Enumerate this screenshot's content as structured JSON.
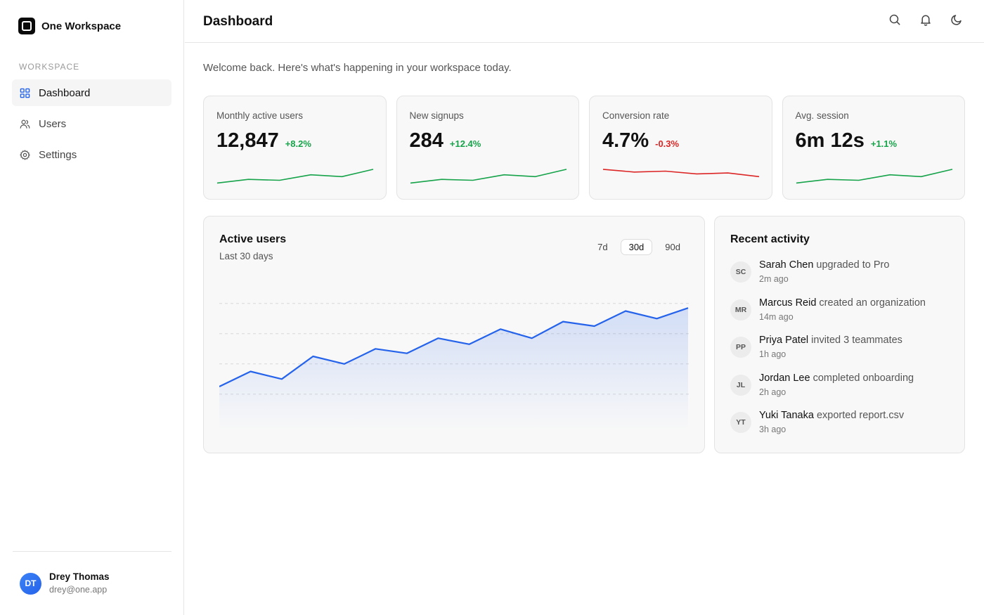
{
  "brand": {
    "name": "One Workspace"
  },
  "sidebar": {
    "section_label": "WORKSPACE",
    "items": [
      {
        "label": "Dashboard",
        "icon": "grid-icon",
        "active": true
      },
      {
        "label": "Users",
        "icon": "users-icon",
        "active": false
      },
      {
        "label": "Settings",
        "icon": "gear-icon",
        "active": false
      }
    ],
    "user": {
      "initials": "DT",
      "name": "Drey Thomas",
      "email": "drey@one.app"
    }
  },
  "header": {
    "title": "Dashboard",
    "icons": [
      "search-icon",
      "bell-icon",
      "moon-icon"
    ]
  },
  "welcome": "Welcome back. Here's what's happening in your workspace today.",
  "colors": {
    "accent": "#2563eb",
    "positive": "#16a34a",
    "negative": "#dc2626"
  },
  "stats": [
    {
      "label": "Monthly active users",
      "value": "12,847",
      "delta": "+8.2%",
      "trend": "up",
      "spark": [
        10,
        14,
        13,
        19,
        17,
        25
      ]
    },
    {
      "label": "New signups",
      "value": "284",
      "delta": "+12.4%",
      "trend": "up",
      "spark": [
        10,
        14,
        13,
        19,
        17,
        25
      ]
    },
    {
      "label": "Conversion rate",
      "value": "4.7%",
      "delta": "-0.3%",
      "trend": "down",
      "spark": [
        25,
        22,
        23,
        20,
        21,
        17
      ]
    },
    {
      "label": "Avg. session",
      "value": "6m 12s",
      "delta": "+1.1%",
      "trend": "up",
      "spark": [
        10,
        14,
        13,
        19,
        17,
        25
      ]
    }
  ],
  "active_users": {
    "title": "Active users",
    "subtitle": "Last 30 days",
    "ranges": [
      {
        "label": "7d",
        "active": false
      },
      {
        "label": "30d",
        "active": true
      },
      {
        "label": "90d",
        "active": false
      }
    ]
  },
  "chart_data": {
    "type": "area",
    "title": "Active users",
    "subtitle": "Last 30 days",
    "x": [
      1,
      2,
      3,
      4,
      5,
      6,
      7,
      8,
      9,
      10,
      11,
      12,
      13,
      14,
      15,
      16
    ],
    "values": [
      20,
      30,
      25,
      40,
      35,
      45,
      42,
      52,
      48,
      58,
      52,
      63,
      60,
      70,
      65,
      72
    ],
    "ylim": [
      0,
      100
    ],
    "grid": true,
    "legend": "none"
  },
  "activity": {
    "title": "Recent activity",
    "items": [
      {
        "initials": "SC",
        "who": "Sarah Chen",
        "action": "upgraded to Pro",
        "time": "2m ago"
      },
      {
        "initials": "MR",
        "who": "Marcus Reid",
        "action": "created an organization",
        "time": "14m ago"
      },
      {
        "initials": "PP",
        "who": "Priya Patel",
        "action": "invited 3 teammates",
        "time": "1h ago"
      },
      {
        "initials": "JL",
        "who": "Jordan Lee",
        "action": "completed onboarding",
        "time": "2h ago"
      },
      {
        "initials": "YT",
        "who": "Yuki Tanaka",
        "action": "exported report.csv",
        "time": "3h ago"
      }
    ]
  }
}
